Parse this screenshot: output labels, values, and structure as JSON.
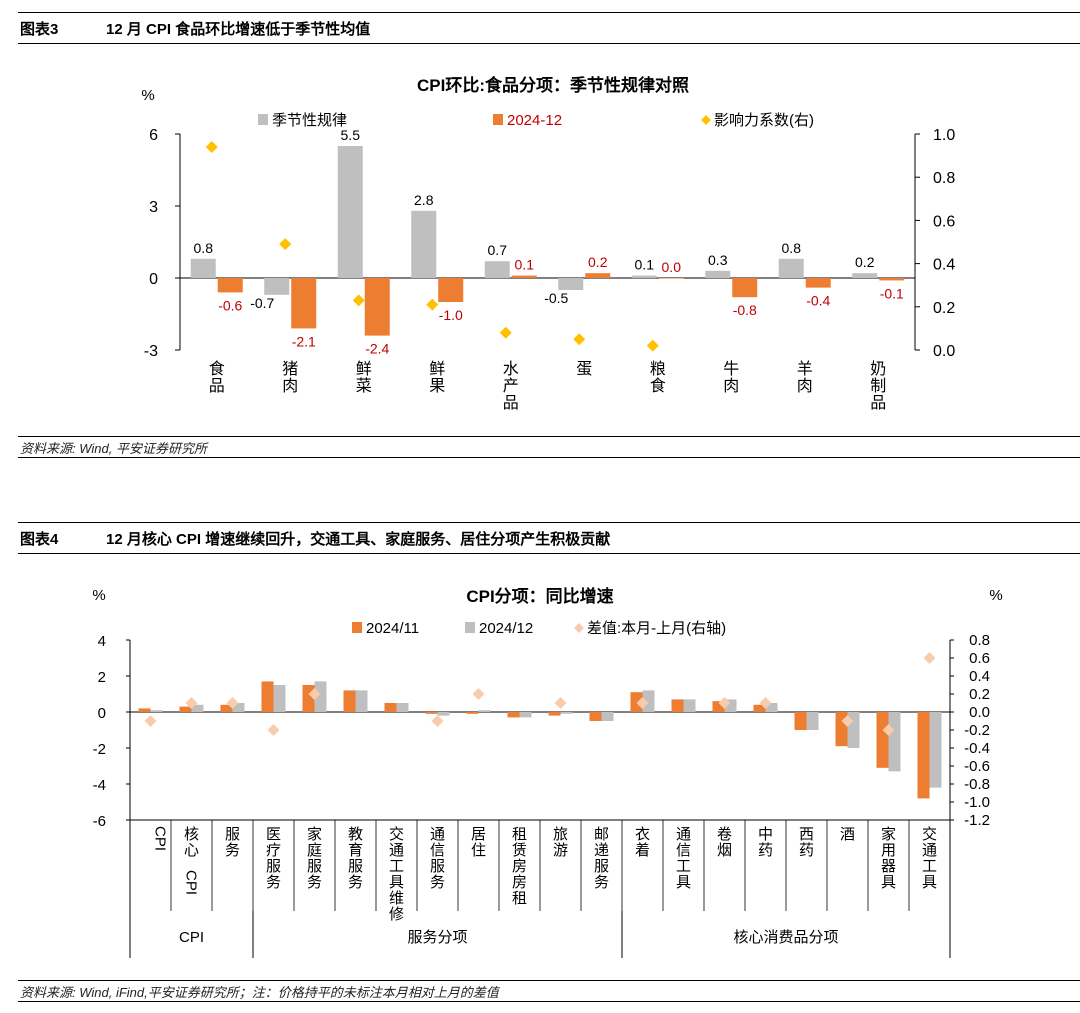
{
  "figure3": {
    "number": "图表3",
    "title": "12 月 CPI 食品环比增速低于季节性均值",
    "source": "资料来源: Wind, 平安证券研究所"
  },
  "figure4": {
    "number": "图表4",
    "title": "12 月核心 CPI 增速继续回升，交通工具、家庭服务、居住分项产生积极贡献",
    "source": "资料来源: Wind, iFind,平安证券研究所；注：价格持平的未标注本月相对上月的差值"
  },
  "chart_data": [
    {
      "type": "bar",
      "title": "CPI环比:食品分项：季节性规律对照",
      "ylabel_left": "%",
      "categories": [
        "食品",
        "猪肉",
        "鲜菜",
        "鲜果",
        "水产品",
        "蛋",
        "粮食",
        "牛肉",
        "羊肉",
        "奶制品"
      ],
      "series": [
        {
          "name": "季节性规律",
          "color": "#BFBFBF",
          "axis": "left",
          "kind": "bar",
          "values": [
            0.8,
            -0.7,
            5.5,
            2.8,
            0.7,
            -0.5,
            0.1,
            0.3,
            0.8,
            0.2
          ],
          "labels": [
            "0.8",
            "-0.7",
            "5.5",
            "2.8",
            "0.7",
            "-0.5",
            "0.1",
            "0.3",
            "0.8",
            "0.2"
          ]
        },
        {
          "name": "2024-12",
          "color": "#ED7D31",
          "axis": "left",
          "kind": "bar",
          "values": [
            -0.6,
            -2.1,
            -2.4,
            -1.0,
            0.1,
            0.2,
            0.0,
            -0.8,
            -0.4,
            -0.1
          ],
          "labels": [
            "-0.6",
            "-2.1",
            "-2.4",
            "-1.0",
            "0.1",
            "0.2",
            "0.0",
            "-0.8",
            "-0.4",
            "-0.1"
          ]
        },
        {
          "name": "影响力系数(右)",
          "color": "#FFC000",
          "axis": "right",
          "kind": "diamond",
          "values": [
            0.94,
            0.49,
            0.23,
            0.21,
            0.08,
            0.05,
            0.02,
            null,
            null,
            null
          ]
        }
      ],
      "ylim_left": [
        -3,
        6
      ],
      "yticks_left": [
        -3,
        0,
        3,
        6
      ],
      "ylim_right": [
        0,
        1.0
      ],
      "yticks_right": [
        "0.0",
        "0.2",
        "0.4",
        "0.6",
        "0.8",
        "1.0"
      ],
      "legend": "top",
      "grid": false
    },
    {
      "type": "bar",
      "title": "CPI分项：同比增速",
      "ylabel_left": "%",
      "ylabel_right": "%",
      "categories": [
        "CPI",
        "核心CPI",
        "服务",
        "医疗服务",
        "家庭服务",
        "教育服务",
        "交通工具维修",
        "通信服务",
        "居住",
        "租赁房房租",
        "旅游",
        "邮递服务",
        "衣着",
        "通信工具",
        "卷烟",
        "中药",
        "西药",
        "酒",
        "家用器具",
        "交通工具"
      ],
      "groups": [
        {
          "label": "CPI",
          "count": 3
        },
        {
          "label": "服务分项",
          "count": 9
        },
        {
          "label": "核心消费品分项",
          "count": 8
        }
      ],
      "series": [
        {
          "name": "2024/11",
          "color": "#ED7D31",
          "axis": "left",
          "kind": "bar",
          "values": [
            0.2,
            0.3,
            0.4,
            1.7,
            1.5,
            1.2,
            0.5,
            -0.1,
            -0.1,
            -0.3,
            -0.2,
            -0.5,
            1.1,
            0.7,
            0.6,
            0.4,
            -1.0,
            -1.9,
            -3.1,
            -4.8
          ]
        },
        {
          "name": "2024/12",
          "color": "#BFBFBF",
          "axis": "left",
          "kind": "bar",
          "values": [
            0.1,
            0.4,
            0.5,
            1.5,
            1.7,
            1.2,
            0.5,
            -0.2,
            0.1,
            -0.3,
            -0.1,
            -0.5,
            1.2,
            0.7,
            0.7,
            0.5,
            -1.0,
            -2.0,
            -3.3,
            -4.2
          ]
        },
        {
          "name": "差值:本月-上月(右轴)",
          "color": "#F8CBAD",
          "axis": "right",
          "kind": "diamond",
          "values": [
            -0.1,
            0.1,
            0.1,
            -0.2,
            0.2,
            null,
            null,
            -0.1,
            0.2,
            null,
            0.1,
            null,
            0.1,
            null,
            0.1,
            0.1,
            null,
            -0.1,
            -0.2,
            0.6
          ]
        }
      ],
      "ylim_left": [
        -6,
        4
      ],
      "yticks_left": [
        "-6",
        "-4",
        "-2",
        "0",
        "2",
        "4"
      ],
      "ylim_right": [
        -1.2,
        0.8
      ],
      "yticks_right": [
        "-1.2",
        "-1.0",
        "-0.8",
        "-0.6",
        "-0.4",
        "-0.2",
        "0.0",
        "0.2",
        "0.4",
        "0.6",
        "0.8"
      ],
      "legend": "top",
      "grid": false
    }
  ]
}
